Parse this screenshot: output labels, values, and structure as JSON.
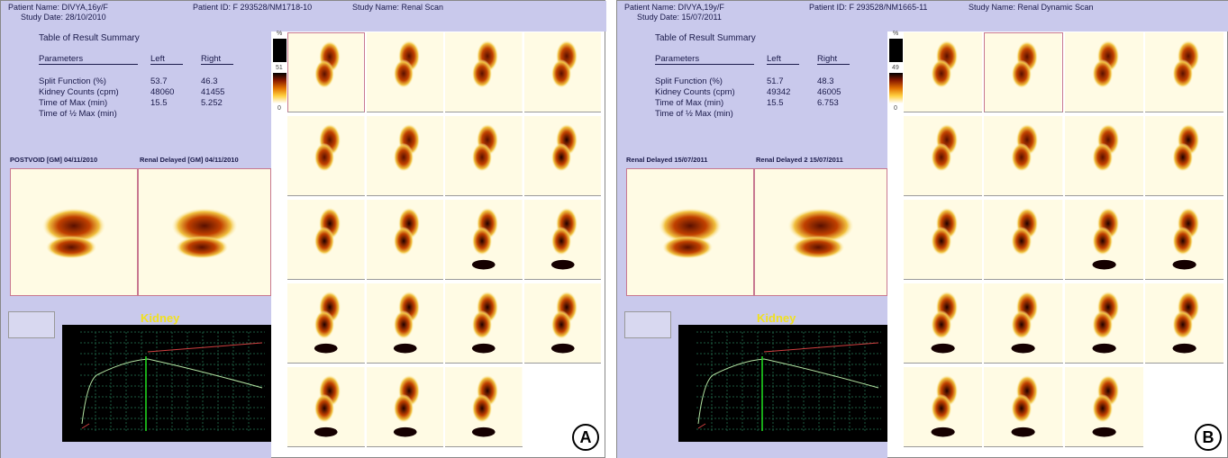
{
  "panels": [
    {
      "header": {
        "patient_name": "Patient Name: DIVYA,16y/F",
        "study_date": "Study Date: 28/10/2010",
        "patient_id": "Patient ID: F 293528/NM1718-10",
        "study_name": "Study Name: Renal Scan"
      },
      "table": {
        "title": "Table of Result Summary",
        "columns": [
          "Parameters",
          "Left",
          "Right"
        ],
        "rows": [
          [
            "Split Function (%)",
            53.7,
            46.3
          ],
          [
            "Kidney Counts (cpm)",
            48060,
            41455
          ],
          [
            "Time of Max (min)",
            15.5,
            5.252
          ],
          [
            "Time of ½ Max (min)"
          ]
        ]
      },
      "colorbar": {
        "unit": "%",
        "max": 51,
        "min": 0
      },
      "images": [
        "POSTVOID [GM] 04/11/2010",
        "Renal Delayed [GM] 04/11/2010"
      ],
      "chart_title": "Kidney",
      "label": "A"
    },
    {
      "header": {
        "patient_name": "Patient Name: DIVYA,19y/F",
        "study_date": "Study Date: 15/07/2011",
        "patient_id": "Patient ID: F 293528/NM1665-11",
        "study_name": "Study Name: Renal Dynamic Scan"
      },
      "table": {
        "title": "Table of Result Summary",
        "columns": [
          "Parameters",
          "Left",
          "Right"
        ],
        "rows": [
          [
            "Split Function (%)",
            51.7,
            48.3
          ],
          [
            "Kidney Counts (cpm)",
            49342,
            46005
          ],
          [
            "Time of Max (min)",
            15.5,
            6.753
          ],
          [
            "Time of ½ Max (min)"
          ]
        ]
      },
      "colorbar": {
        "unit": "%",
        "max": 49,
        "min": 0
      },
      "images": [
        "Renal Delayed 15/07/2011",
        "Renal Delayed 2 15/07/2011"
      ],
      "chart_title": "Kidney",
      "label": "B"
    }
  ]
}
